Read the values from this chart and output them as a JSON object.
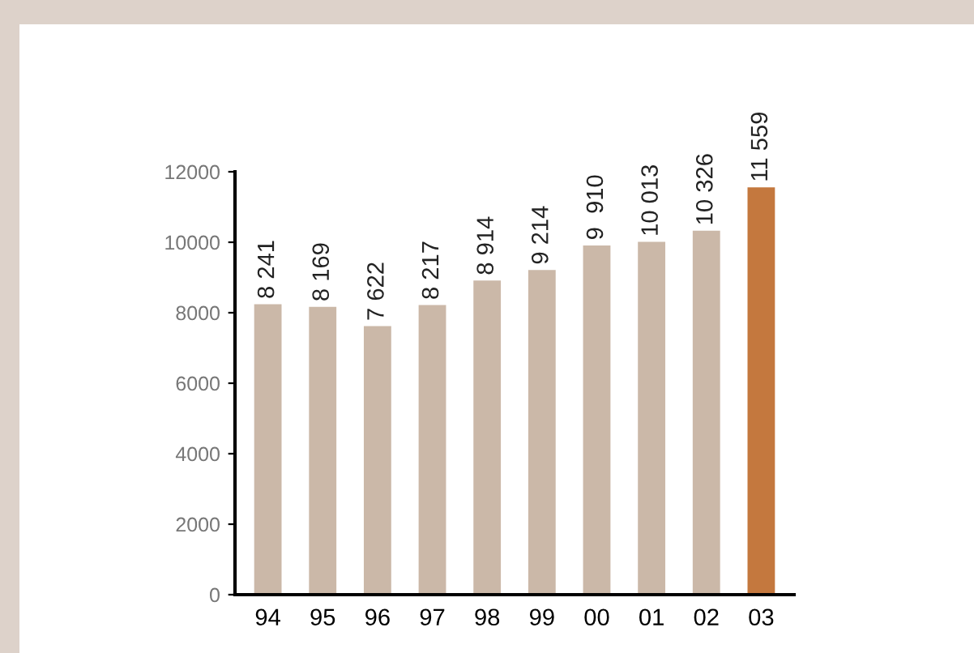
{
  "chart_data": {
    "type": "bar",
    "categories": [
      "94",
      "95",
      "96",
      "97",
      "98",
      "99",
      "00",
      "01",
      "02",
      "03"
    ],
    "values": [
      8241,
      8169,
      7622,
      8217,
      8914,
      9214,
      9910,
      10013,
      10326,
      11559
    ],
    "colors": [
      "#cbb8a8",
      "#cbb8a8",
      "#cbb8a8",
      "#cbb8a8",
      "#cbb8a8",
      "#cbb8a8",
      "#cbb8a8",
      "#cbb8a8",
      "#cbb8a8",
      "#c4783e"
    ],
    "value_labels": [
      "8 241",
      "8 169",
      "7 622",
      "8 217",
      "8 914",
      "9 214",
      "9  910",
      "10 013",
      "10 326",
      "11 559"
    ],
    "ylim": [
      0,
      12000
    ],
    "yticks": [
      0,
      2000,
      4000,
      6000,
      8000,
      10000,
      12000
    ],
    "grid": false,
    "legend": false
  }
}
